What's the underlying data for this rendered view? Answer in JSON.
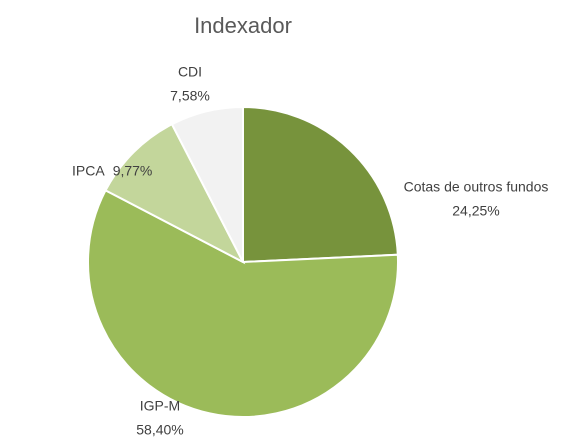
{
  "chart_data": {
    "type": "pie",
    "title": "Indexador",
    "categories": [
      "Cotas de outros fundos",
      "IGP-M",
      "IPCA",
      "CDI"
    ],
    "values": [
      24.25,
      58.4,
      9.77,
      7.58
    ],
    "value_labels": [
      "24,25%",
      "58,40%",
      "9,77%",
      "7,58%"
    ],
    "colors": [
      "#77933c",
      "#9bbb59",
      "#c3d69b",
      "#f2f2f2"
    ]
  }
}
